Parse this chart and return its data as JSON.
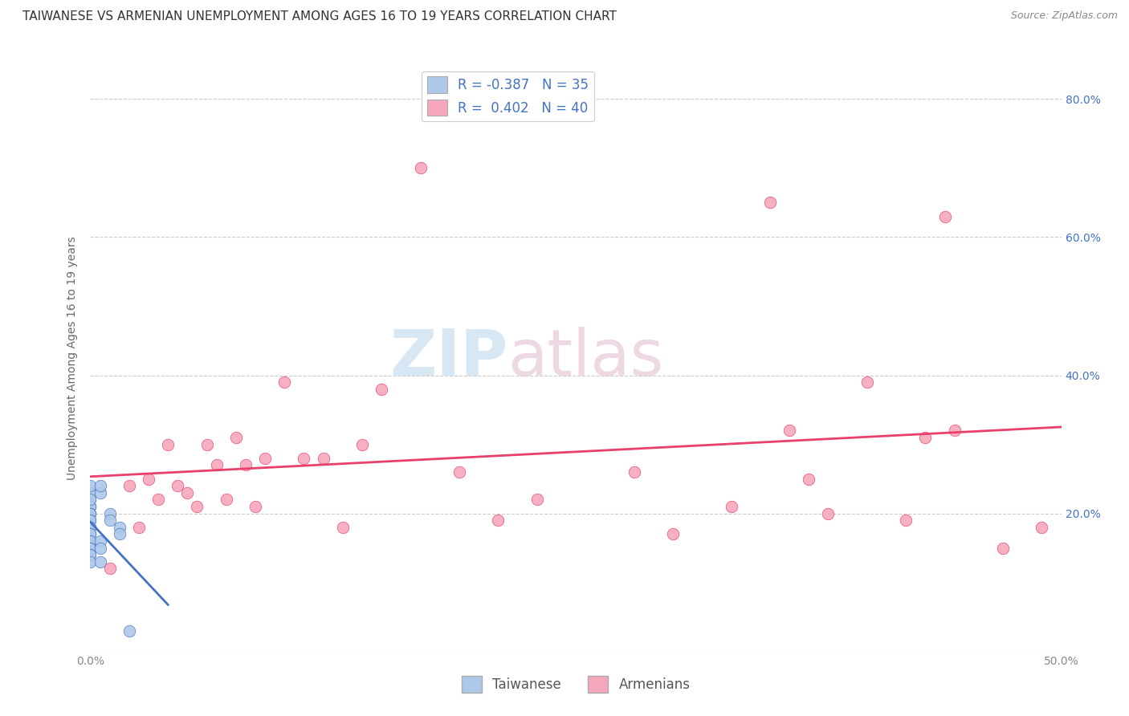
{
  "title": "TAIWANESE VS ARMENIAN UNEMPLOYMENT AMONG AGES 16 TO 19 YEARS CORRELATION CHART",
  "source": "Source: ZipAtlas.com",
  "ylabel": "Unemployment Among Ages 16 to 19 years",
  "xlim": [
    0.0,
    0.5
  ],
  "ylim": [
    0.0,
    0.85
  ],
  "xticks": [
    0.0,
    0.1,
    0.2,
    0.3,
    0.4,
    0.5
  ],
  "xticklabels": [
    "0.0%",
    "",
    "",
    "",
    "",
    "50.0%"
  ],
  "yticks": [
    0.0,
    0.2,
    0.4,
    0.6,
    0.8
  ],
  "right_yticklabels": [
    "",
    "20.0%",
    "40.0%",
    "60.0%",
    "80.0%"
  ],
  "taiwanese_R": -0.387,
  "taiwanese_N": 35,
  "armenian_R": 0.402,
  "armenian_N": 40,
  "taiwanese_color": "#adc8e8",
  "armenian_color": "#f5a8bc",
  "taiwanese_line_color": "#4472C4",
  "armenian_line_color": "#e8406a",
  "right_tick_color": "#4472C4",
  "watermark_zip": "ZIP",
  "watermark_atlas": "atlas",
  "background_color": "#ffffff",
  "grid_color": "#cccccc",
  "title_fontsize": 11,
  "axis_label_fontsize": 10,
  "tick_fontsize": 10,
  "legend_fontsize": 12,
  "taiwanese_x": [
    0.0,
    0.0,
    0.0,
    0.0,
    0.0,
    0.0,
    0.0,
    0.0,
    0.0,
    0.0,
    0.0,
    0.0,
    0.0,
    0.0,
    0.0,
    0.0,
    0.0,
    0.0,
    0.0,
    0.0,
    0.0,
    0.0,
    0.0,
    0.0,
    0.0,
    0.005,
    0.005,
    0.005,
    0.005,
    0.005,
    0.01,
    0.01,
    0.015,
    0.015,
    0.02
  ],
  "taiwanese_y": [
    0.22,
    0.21,
    0.21,
    0.21,
    0.2,
    0.2,
    0.2,
    0.19,
    0.19,
    0.18,
    0.18,
    0.18,
    0.17,
    0.17,
    0.17,
    0.16,
    0.16,
    0.15,
    0.15,
    0.14,
    0.14,
    0.23,
    0.24,
    0.22,
    0.13,
    0.23,
    0.24,
    0.16,
    0.15,
    0.13,
    0.2,
    0.19,
    0.18,
    0.17,
    0.03
  ],
  "armenian_x": [
    0.01,
    0.02,
    0.025,
    0.03,
    0.035,
    0.04,
    0.045,
    0.05,
    0.055,
    0.06,
    0.065,
    0.07,
    0.075,
    0.08,
    0.085,
    0.09,
    0.1,
    0.11,
    0.12,
    0.13,
    0.14,
    0.15,
    0.17,
    0.19,
    0.21,
    0.23,
    0.28,
    0.3,
    0.33,
    0.35,
    0.36,
    0.37,
    0.38,
    0.4,
    0.42,
    0.43,
    0.44,
    0.445,
    0.47,
    0.49
  ],
  "armenian_y": [
    0.12,
    0.24,
    0.18,
    0.25,
    0.22,
    0.3,
    0.24,
    0.23,
    0.21,
    0.3,
    0.27,
    0.22,
    0.31,
    0.27,
    0.21,
    0.28,
    0.39,
    0.28,
    0.28,
    0.18,
    0.3,
    0.38,
    0.7,
    0.26,
    0.19,
    0.22,
    0.26,
    0.17,
    0.21,
    0.65,
    0.32,
    0.25,
    0.2,
    0.39,
    0.19,
    0.31,
    0.63,
    0.32,
    0.15,
    0.18
  ]
}
